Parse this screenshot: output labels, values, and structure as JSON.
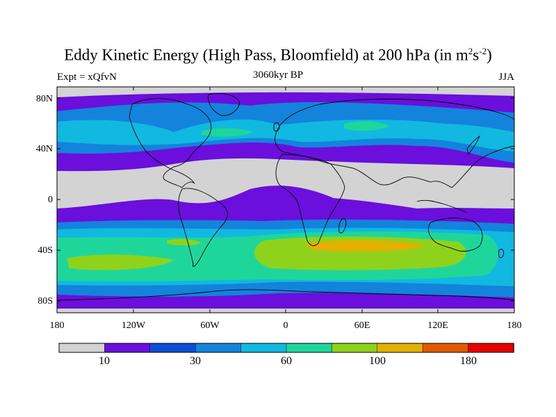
{
  "title": {
    "prefix": "Eddy Kinetic Energy (High Pass, Bloomfield) at 200 hPa (in m",
    "sup1": "2",
    "mid": "s",
    "sup2": "-2",
    "suffix": ")"
  },
  "subtitle": "3060kyr BP",
  "experiment_label": "Expt = xQfvN",
  "season_label": "JJA",
  "axes": {
    "lat_labels": [
      "80N",
      "40N",
      "0",
      "40S",
      "80S"
    ],
    "lon_labels": [
      "180",
      "120W",
      "60W",
      "0",
      "60E",
      "120E",
      "180"
    ]
  },
  "colorbar": {
    "colors": [
      "#d3d3d3",
      "#6a0fdc",
      "#0a4fd8",
      "#1383dc",
      "#11b8e0",
      "#1fd69a",
      "#8fd21c",
      "#e2b000",
      "#e05a00",
      "#e60000"
    ],
    "labels": [
      "10",
      "30",
      "60",
      "100",
      "180"
    ]
  },
  "colors": {
    "land_outline": "#000000",
    "frame": "#000000"
  }
}
